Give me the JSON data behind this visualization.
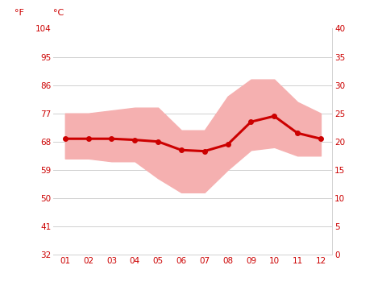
{
  "months": [
    1,
    2,
    3,
    4,
    5,
    6,
    7,
    8,
    9,
    10,
    11,
    12
  ],
  "month_labels": [
    "01",
    "02",
    "03",
    "04",
    "05",
    "06",
    "07",
    "08",
    "09",
    "10",
    "11",
    "12"
  ],
  "mean_temp_c": [
    20.5,
    20.5,
    20.5,
    20.3,
    20.0,
    18.5,
    18.3,
    19.5,
    23.5,
    24.5,
    21.5,
    20.5
  ],
  "temp_max_c": [
    25.0,
    25.0,
    25.5,
    26.0,
    26.0,
    22.0,
    22.0,
    28.0,
    31.0,
    31.0,
    27.0,
    25.0
  ],
  "temp_min_c": [
    17.0,
    17.0,
    16.5,
    16.5,
    13.5,
    11.0,
    11.0,
    15.0,
    18.5,
    19.0,
    17.5,
    17.5
  ],
  "y_ticks_c": [
    0,
    5,
    10,
    15,
    20,
    25,
    30,
    35,
    40
  ],
  "y_ticks_f": [
    32,
    41,
    50,
    59,
    68,
    77,
    86,
    95,
    104
  ],
  "ylim_c": [
    0,
    40
  ],
  "xlim": [
    0.5,
    12.5
  ],
  "line_color": "#cc0000",
  "band_color": "#f5b0b0",
  "grid_color": "#d0d0d0",
  "tick_color": "#cc0000",
  "bg_color": "#ffffff",
  "marker": "o",
  "marker_size": 4,
  "line_width": 2.2,
  "label_f": "°F",
  "label_c": "°C",
  "tick_fontsize": 7.5,
  "header_fontsize": 8
}
